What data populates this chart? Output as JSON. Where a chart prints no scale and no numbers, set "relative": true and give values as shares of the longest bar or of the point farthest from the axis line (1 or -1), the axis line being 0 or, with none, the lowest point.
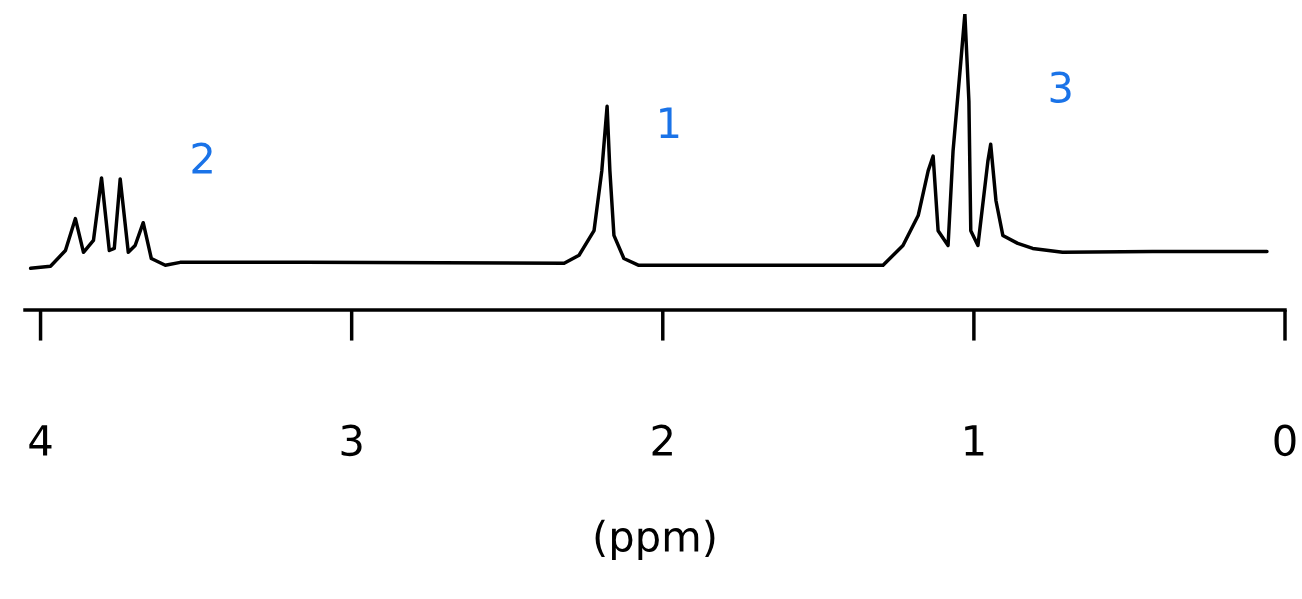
{
  "chart_data": {
    "type": "line",
    "relative": true,
    "xlabel": "(ppm)",
    "xlim": [
      4.05,
      0
    ],
    "xticks": [
      4,
      3,
      2,
      1,
      0
    ],
    "color": "#000000",
    "grid": false,
    "legend": false,
    "marker": "none",
    "line_style": "solid",
    "x": [
      4.032,
      3.968,
      3.92,
      3.888,
      3.862,
      3.83,
      3.804,
      3.779,
      3.763,
      3.744,
      3.718,
      3.696,
      3.67,
      3.644,
      3.599,
      3.551,
      3.151,
      2.317,
      2.269,
      2.221,
      2.196,
      2.179,
      2.17,
      2.157,
      2.125,
      2.077,
      1.292,
      1.228,
      1.179,
      1.147,
      1.131,
      1.115,
      1.083,
      1.067,
      1.042,
      1.029,
      1.016,
      1.01,
      0.987,
      0.955,
      0.946,
      0.929,
      0.907,
      0.859,
      0.811,
      0.715,
      0.426,
      0.058
    ],
    "values": [
      0.141,
      0.148,
      0.201,
      0.309,
      0.195,
      0.235,
      0.446,
      0.201,
      0.208,
      0.443,
      0.195,
      0.218,
      0.295,
      0.174,
      0.151,
      0.161,
      0.161,
      0.158,
      0.185,
      0.268,
      0.47,
      0.688,
      0.47,
      0.252,
      0.174,
      0.151,
      0.151,
      0.218,
      0.319,
      0.47,
      0.52,
      0.268,
      0.218,
      0.537,
      0.839,
      1.0,
      0.705,
      0.268,
      0.218,
      0.503,
      0.56,
      0.369,
      0.252,
      0.225,
      0.208,
      0.195,
      0.198,
      0.198
    ],
    "annotations": [
      "2",
      "1",
      "3"
    ]
  }
}
